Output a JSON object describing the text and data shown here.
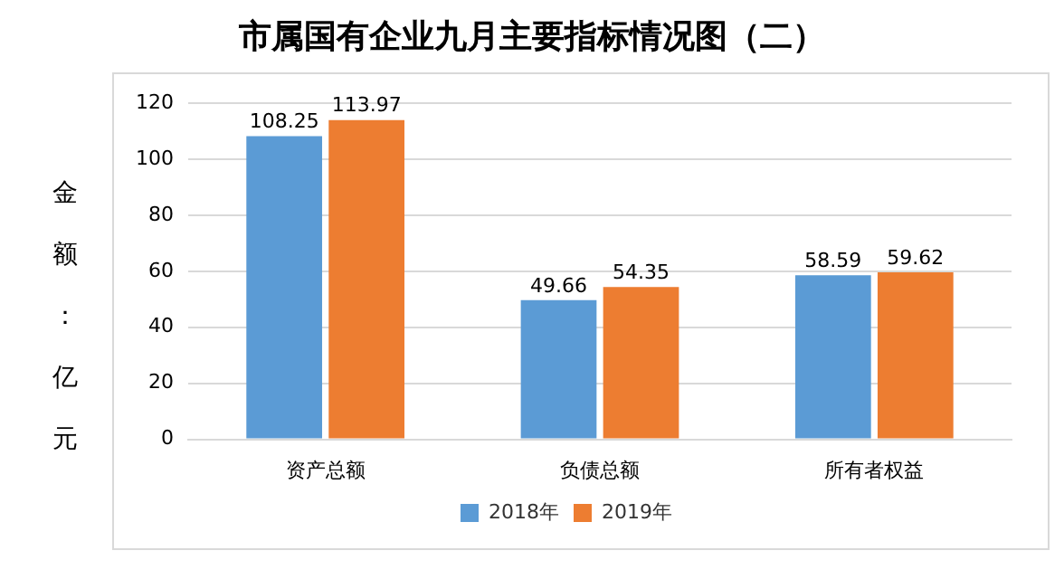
{
  "chart_data": {
    "type": "bar",
    "title": "市属国有企业九月主要指标情况图（二）",
    "ylabel": "金额：亿元",
    "categories": [
      "资产总额",
      "负债总额",
      "所有者权益"
    ],
    "series": [
      {
        "name": "2018年",
        "color": "#5b9bd5",
        "values": [
          108.25,
          49.66,
          58.59
        ]
      },
      {
        "name": "2019年",
        "color": "#ed7d31",
        "values": [
          113.97,
          54.35,
          59.62
        ]
      }
    ],
    "ylim": [
      0,
      120
    ],
    "yticks": [
      0,
      20,
      40,
      60,
      80,
      100,
      120
    ],
    "grid": "y",
    "legend": "bottom",
    "data_labels": true
  }
}
